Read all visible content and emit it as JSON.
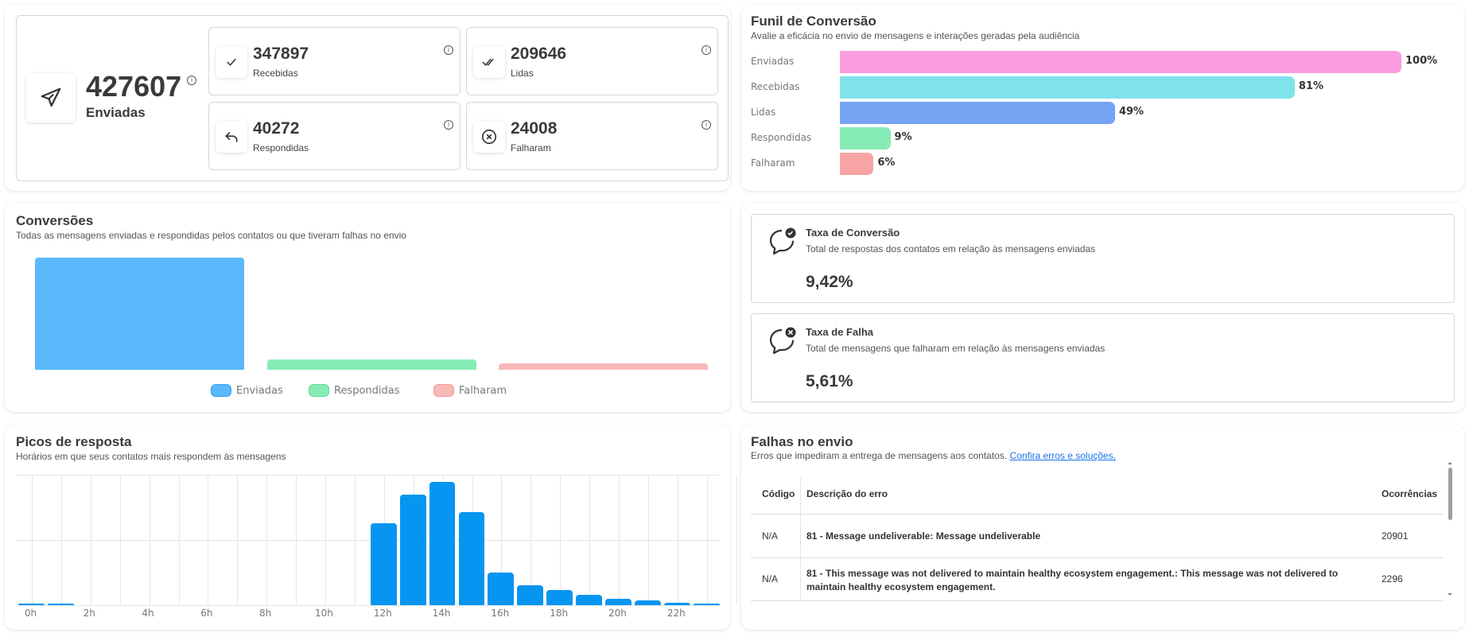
{
  "stats": {
    "main": {
      "value": "427607",
      "label": "Enviadas",
      "icon": "paper-plane-icon"
    },
    "boxes": [
      {
        "value": "347897",
        "label": "Recebidas",
        "icon": "check-icon"
      },
      {
        "value": "209646",
        "label": "Lidas",
        "icon": "double-check-icon"
      },
      {
        "value": "40272",
        "label": "Respondidas",
        "icon": "reply-icon"
      },
      {
        "value": "24008",
        "label": "Falharam",
        "icon": "x-circle-icon"
      }
    ],
    "info_glyph": "i"
  },
  "funnel": {
    "title": "Funil de Conversão",
    "subtitle": "Avalie a eficácia no envio de mensagens e interações geradas pela audiência",
    "rows": [
      {
        "label": "Enviadas",
        "percent": 100,
        "percent_label": "100%",
        "color": "#fc9ce0"
      },
      {
        "label": "Recebidas",
        "percent": 81,
        "percent_label": "81%",
        "color": "#80e3ec"
      },
      {
        "label": "Lidas",
        "percent": 49,
        "percent_label": "49%",
        "color": "#76a3f4"
      },
      {
        "label": "Respondidas",
        "percent": 9,
        "percent_label": "9%",
        "color": "#86ecb5"
      },
      {
        "label": "Falharam",
        "percent": 6,
        "percent_label": "6%",
        "color": "#f7a4a4"
      }
    ]
  },
  "conversions": {
    "title": "Conversões",
    "subtitle": "Todas as mensagens enviadas e respondidas pelos contatos ou que tiveram falhas no envio",
    "legend": [
      "Enviadas",
      "Respondidas",
      "Falharam"
    ]
  },
  "rates": [
    {
      "title": "Taxa de Conversão",
      "description": "Total de respostas dos contatos em relação às mensagens enviadas",
      "value": "9,42%",
      "icon": "chat-check-icon"
    },
    {
      "title": "Taxa de Falha",
      "description": "Total de mensagens que falharam em relação às mensagens enviadas",
      "value": "5,61%",
      "icon": "chat-x-icon"
    }
  ],
  "peaks": {
    "title": "Picos de resposta",
    "subtitle": "Horários em que seus contatos mais respondem às mensagens",
    "x_labels": [
      "0h",
      "2h",
      "4h",
      "6h",
      "8h",
      "10h",
      "12h",
      "14h",
      "16h",
      "18h",
      "20h",
      "22h"
    ]
  },
  "failures": {
    "title": "Falhas no envio",
    "subtitle": "Erros que impediram a entrega de mensagens aos contatos.",
    "link": "Confira erros e soluções.",
    "columns": {
      "code": "Código",
      "description": "Descrição do erro",
      "occurrences": "Ocorrências"
    },
    "rows": [
      {
        "code": "N/A",
        "description": "81 - Message undeliverable: Message undeliverable",
        "occurrences": "20901"
      },
      {
        "code": "N/A",
        "description": "81 - This message was not delivered to maintain healthy ecosystem engagement.: This message was not delivered to maintain healthy ecosystem engagement.",
        "occurrences": "2296"
      }
    ]
  },
  "chart_data": [
    {
      "type": "bar",
      "title": "Conversões",
      "categories": [
        "Enviadas",
        "Respondidas",
        "Falharam"
      ],
      "values": [
        427607,
        40272,
        24008
      ],
      "colors": [
        "#5ab8fb",
        "#86ecb5",
        "#f9b9b9"
      ],
      "legend": "bottom",
      "grid": false
    },
    {
      "type": "bar",
      "title": "Picos de resposta",
      "categories": [
        "0h",
        "1h",
        "2h",
        "3h",
        "4h",
        "5h",
        "6h",
        "7h",
        "8h",
        "9h",
        "10h",
        "11h",
        "12h",
        "13h",
        "14h",
        "15h",
        "16h",
        "17h",
        "18h",
        "19h",
        "20h",
        "21h",
        "22h",
        "23h"
      ],
      "values": [
        1,
        1,
        0,
        0,
        0,
        0,
        0,
        0,
        0,
        0,
        0,
        0,
        65,
        88,
        98,
        74,
        26,
        16,
        12,
        8,
        5,
        4,
        2,
        1
      ],
      "color": "#0795f2",
      "grid": true
    }
  ]
}
